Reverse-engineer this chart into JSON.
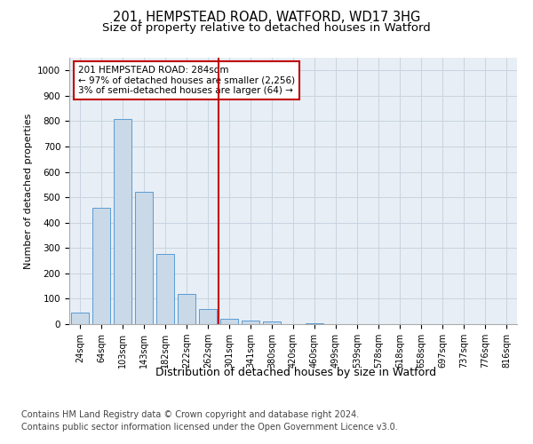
{
  "title_line1": "201, HEMPSTEAD ROAD, WATFORD, WD17 3HG",
  "title_line2": "Size of property relative to detached houses in Watford",
  "xlabel": "Distribution of detached houses by size in Watford",
  "ylabel": "Number of detached properties",
  "categories": [
    "24sqm",
    "64sqm",
    "103sqm",
    "143sqm",
    "182sqm",
    "222sqm",
    "262sqm",
    "301sqm",
    "341sqm",
    "380sqm",
    "420sqm",
    "460sqm",
    "499sqm",
    "539sqm",
    "578sqm",
    "618sqm",
    "658sqm",
    "697sqm",
    "737sqm",
    "776sqm",
    "816sqm"
  ],
  "values": [
    45,
    460,
    810,
    520,
    275,
    120,
    60,
    22,
    13,
    10,
    0,
    5,
    0,
    0,
    0,
    0,
    0,
    0,
    0,
    0,
    0
  ],
  "bar_color": "#c9d9e8",
  "bar_edge_color": "#5b9bd5",
  "vline_x_idx": 6.5,
  "vline_color": "#c00000",
  "annotation_text": "201 HEMPSTEAD ROAD: 284sqm\n← 97% of detached houses are smaller (2,256)\n3% of semi-detached houses are larger (64) →",
  "annotation_box_color": "#c00000",
  "ylim": [
    0,
    1050
  ],
  "yticks": [
    0,
    100,
    200,
    300,
    400,
    500,
    600,
    700,
    800,
    900,
    1000
  ],
  "grid_color": "#c8d4e0",
  "bg_color": "#e8eef5",
  "footer_line1": "Contains HM Land Registry data © Crown copyright and database right 2024.",
  "footer_line2": "Contains public sector information licensed under the Open Government Licence v3.0.",
  "title_fontsize": 10.5,
  "subtitle_fontsize": 9.5,
  "xlabel_fontsize": 9,
  "ylabel_fontsize": 8,
  "tick_fontsize": 7.5,
  "annot_fontsize": 7.5,
  "footer_fontsize": 7
}
